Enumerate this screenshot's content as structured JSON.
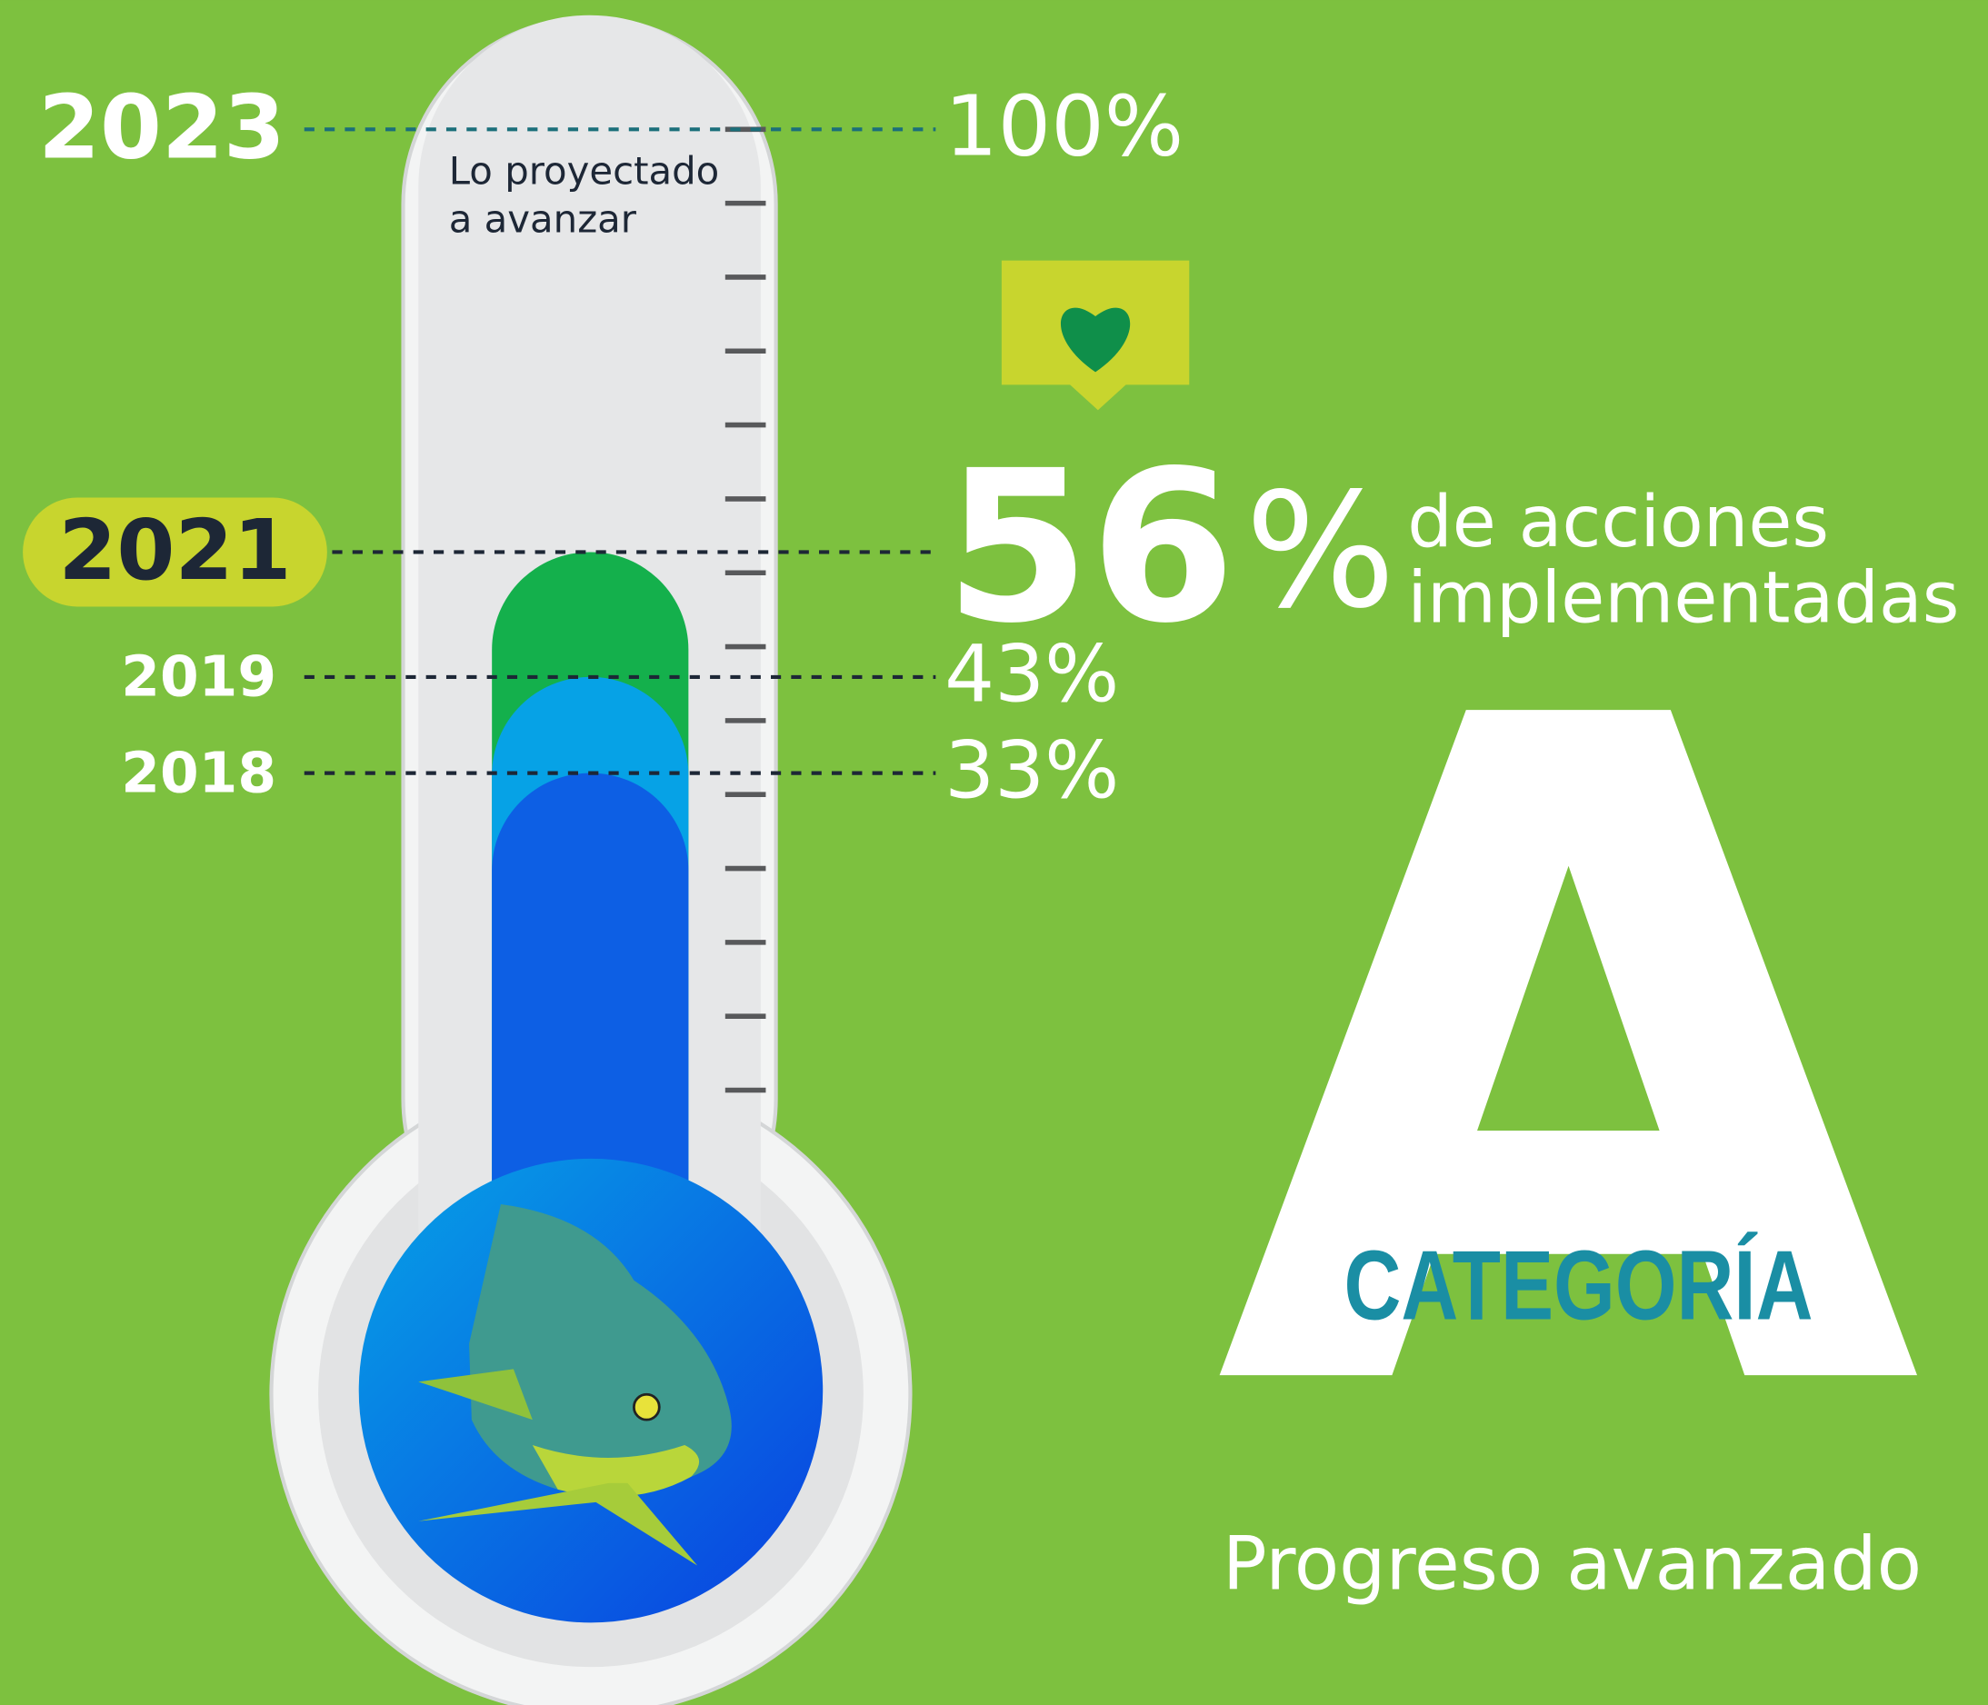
{
  "chart_data": {
    "type": "thermometer",
    "categories": [
      "2023",
      "2021",
      "2019",
      "2018"
    ],
    "values": [
      100,
      56,
      43,
      33
    ],
    "value_labels": [
      "100%",
      "56",
      "43%",
      "33%"
    ],
    "colors": [
      "#e6e7e8",
      "#14b04c",
      "#06a2e6",
      "#0d5fe4"
    ],
    "ylim": [
      0,
      100
    ],
    "projection_label": [
      "Lo proyectado",
      "a avanzar"
    ],
    "highlight_unit": "%",
    "highlight_text": [
      "de acciones",
      "implementadas"
    ],
    "category_grade": "A",
    "category_label": "CATEGORÍA",
    "category_text": "Progreso avanzado"
  }
}
